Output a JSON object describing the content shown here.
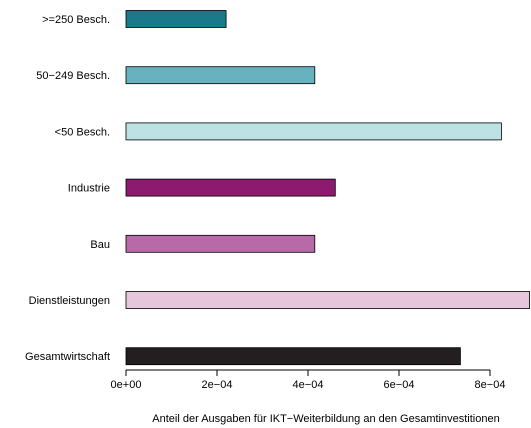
{
  "chart_data": {
    "type": "bar",
    "orientation": "horizontal",
    "title": "",
    "xlabel": "Anteil der Ausgaben für IKT−Weiterbildung an den Gesamtinvestitionen",
    "ylabel": "",
    "xlim": [
      0,
      0.0008
    ],
    "x_ticks": [
      {
        "value": 0,
        "label": "0e+00"
      },
      {
        "value": 0.0002,
        "label": "2e−04"
      },
      {
        "value": 0.0004,
        "label": "4e−04"
      },
      {
        "value": 0.0006,
        "label": "6e−04"
      },
      {
        "value": 0.0008,
        "label": "8e−04"
      }
    ],
    "grid": false,
    "legend": "none",
    "categories": [
      ">=250 Besch.",
      "50−249 Besch.",
      "<50 Besch.",
      "Industrie",
      "Bau",
      "Dienstleistungen",
      "Gesamtwirtschaft"
    ],
    "values": [
      0.00022,
      0.000415,
      0.000825,
      0.00046,
      0.000415,
      0.000887,
      0.000735
    ],
    "colors": [
      "#1a7a8c",
      "#66b3bf",
      "#bde2e6",
      "#8c1a6e",
      "#b86aa8",
      "#e6c6db",
      "#231f20"
    ]
  }
}
